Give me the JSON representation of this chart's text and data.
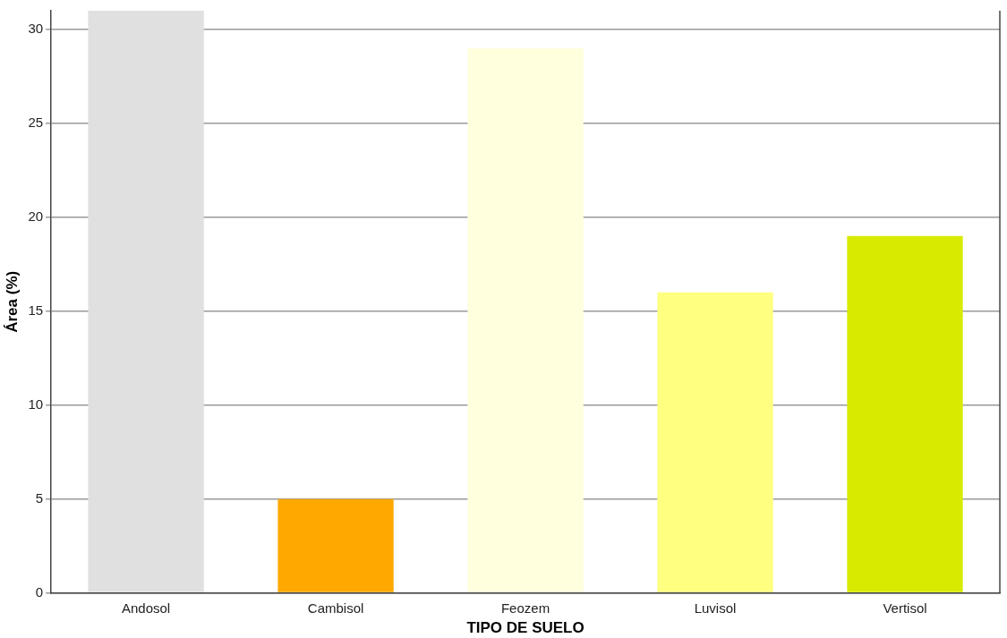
{
  "chart_data": {
    "type": "bar",
    "categories": [
      "Andosol",
      "Cambisol",
      "Feozem",
      "Luvisol",
      "Vertisol"
    ],
    "values": [
      31,
      5,
      29,
      16,
      19
    ],
    "colors": [
      "#e0e0e0",
      "#ffa800",
      "#ffffdd",
      "#ffff80",
      "#d8ea00"
    ],
    "xlabel": "TIPO DE SUELO",
    "ylabel": "Área (%)",
    "ylim": [
      0,
      31
    ],
    "yticks": [
      0,
      5,
      10,
      15,
      20,
      25,
      30
    ],
    "grid": "y",
    "legend": false
  }
}
